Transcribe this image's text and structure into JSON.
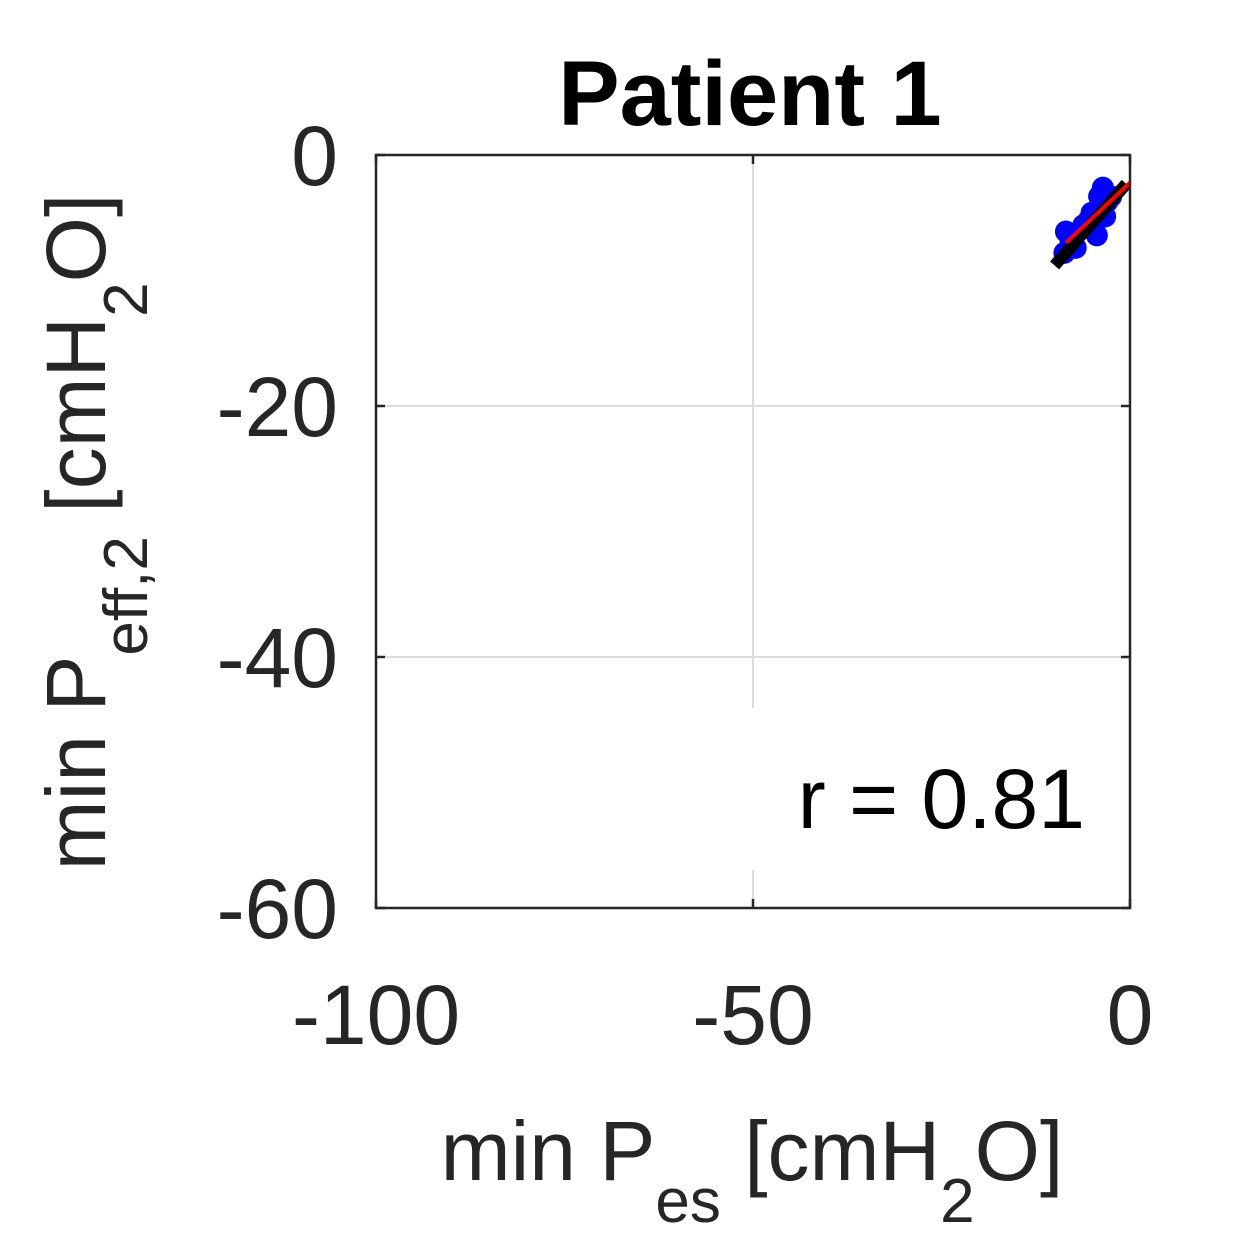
{
  "chart_data": {
    "type": "scatter",
    "title": "Patient 1",
    "xlabel": {
      "main": "min P",
      "sub": "es",
      "unit_open": " [cmH",
      "unit_sub": "2",
      "unit_close": "O]"
    },
    "ylabel": {
      "main": "min P",
      "sub": "eff,2",
      "unit_open": " [cmH",
      "unit_sub": "2",
      "unit_close": "O]"
    },
    "xlim": [
      -100,
      0
    ],
    "ylim": [
      -60,
      0
    ],
    "xticks": [
      -100,
      -50,
      0
    ],
    "xtick_labels": [
      "-100",
      "-50",
      "0"
    ],
    "yticks": [
      0,
      -20,
      -40,
      -60
    ],
    "ytick_labels": [
      "0",
      "-20",
      "-40",
      "-60"
    ],
    "grid": true,
    "annotation": "r = 0.81",
    "colors": {
      "points": "#0000ff",
      "identity_line": "#000000",
      "fit_line": "#ff0000",
      "axes": "#262626",
      "grid": "#dcdcdc"
    },
    "points": [
      {
        "x": -8.7,
        "y": -7.8
      },
      {
        "x": -8.5,
        "y": -6.1
      },
      {
        "x": -7.9,
        "y": -6.8
      },
      {
        "x": -7.2,
        "y": -7.4
      },
      {
        "x": -6.2,
        "y": -5.6
      },
      {
        "x": -5.5,
        "y": -5.2
      },
      {
        "x": -5.1,
        "y": -4.6
      },
      {
        "x": -4.6,
        "y": -5.4
      },
      {
        "x": -4.4,
        "y": -6.4
      },
      {
        "x": -4.1,
        "y": -3.3
      },
      {
        "x": -3.9,
        "y": -4.4
      },
      {
        "x": -3.6,
        "y": -2.6
      },
      {
        "x": -3.3,
        "y": -4.9
      },
      {
        "x": -3.0,
        "y": -3.7
      },
      {
        "x": -2.5,
        "y": -3.3
      }
    ],
    "identity_line": {
      "x": [
        -10,
        -0.5
      ],
      "y": [
        -8.8,
        -2.3
      ]
    },
    "fit_line": {
      "x": [
        -8.5,
        0
      ],
      "y": [
        -7.0,
        -2.2
      ]
    }
  }
}
